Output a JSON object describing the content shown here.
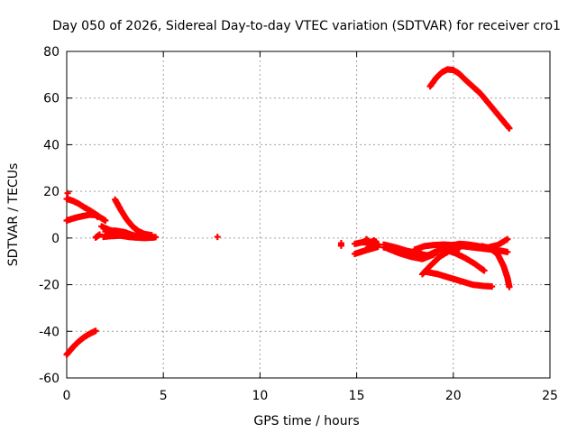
{
  "chart_data": {
    "type": "scatter",
    "title": "Day 050 of 2026, Sidereal Day-to-day VTEC variation (SDTVAR) for receiver cro1",
    "xlabel": "GPS time / hours",
    "ylabel": "SDTVAR / TECUs",
    "xlim": [
      0,
      25
    ],
    "ylim": [
      -60,
      80
    ],
    "xticks": [
      0,
      5,
      10,
      15,
      20,
      25
    ],
    "yticks": [
      -60,
      -40,
      -20,
      0,
      20,
      40,
      60,
      80
    ],
    "grid": true,
    "marker": "plus",
    "color": "#ff0000",
    "series": [
      {
        "name": "arc-1",
        "points": [
          [
            0.0,
            16.8
          ],
          [
            0.3,
            16.0
          ],
          [
            0.6,
            14.8
          ],
          [
            0.9,
            13.2
          ],
          [
            1.2,
            11.8
          ],
          [
            1.5,
            10.2
          ],
          [
            1.8,
            8.5
          ],
          [
            2.0,
            7.5
          ]
        ]
      },
      {
        "name": "arc-2",
        "points": [
          [
            0.0,
            7.5
          ],
          [
            0.3,
            8.3
          ],
          [
            0.6,
            9.0
          ],
          [
            0.9,
            9.5
          ],
          [
            1.2,
            10.0
          ],
          [
            1.5,
            9.8
          ],
          [
            1.6,
            9.0
          ]
        ]
      },
      {
        "name": "arc-3",
        "points": [
          [
            0.05,
            19.2
          ]
        ]
      },
      {
        "name": "arc-4",
        "points": [
          [
            0.0,
            -50.0
          ],
          [
            0.3,
            -47.0
          ],
          [
            0.6,
            -44.5
          ],
          [
            0.9,
            -42.5
          ],
          [
            1.2,
            -41.0
          ],
          [
            1.5,
            -39.8
          ]
        ]
      },
      {
        "name": "arc-5",
        "points": [
          [
            1.5,
            0.2
          ],
          [
            1.7,
            1.5
          ]
        ]
      },
      {
        "name": "arc-6",
        "points": [
          [
            1.8,
            5.0
          ],
          [
            2.2,
            3.5
          ],
          [
            2.6,
            2.5
          ],
          [
            3.0,
            1.8
          ],
          [
            3.4,
            1.2
          ],
          [
            3.8,
            0.8
          ],
          [
            4.2,
            0.5
          ],
          [
            4.6,
            0.4
          ]
        ]
      },
      {
        "name": "arc-7",
        "points": [
          [
            1.9,
            0.5
          ],
          [
            2.3,
            0.8
          ],
          [
            2.8,
            1.0
          ],
          [
            3.2,
            0.5
          ],
          [
            3.6,
            0.2
          ],
          [
            4.0,
            0.0
          ],
          [
            4.5,
            0.2
          ]
        ]
      },
      {
        "name": "arc-8",
        "points": [
          [
            2.5,
            16.5
          ],
          [
            2.8,
            12.0
          ],
          [
            3.1,
            8.0
          ],
          [
            3.4,
            5.0
          ],
          [
            3.7,
            3.0
          ],
          [
            4.0,
            1.8
          ],
          [
            4.4,
            1.2
          ]
        ]
      },
      {
        "name": "arc-9",
        "points": [
          [
            2.0,
            2.8
          ],
          [
            2.5,
            3.2
          ],
          [
            3.0,
            2.5
          ],
          [
            3.5,
            1.0
          ]
        ]
      },
      {
        "name": "arc-10",
        "points": [
          [
            7.8,
            0.5
          ]
        ]
      },
      {
        "name": "arc-11",
        "points": [
          [
            14.2,
            -2.2
          ],
          [
            14.2,
            -3.3
          ]
        ]
      },
      {
        "name": "arc-12",
        "points": [
          [
            14.9,
            -2.5
          ],
          [
            15.3,
            -1.8
          ],
          [
            15.7,
            -2.0
          ],
          [
            16.0,
            -2.5
          ]
        ]
      },
      {
        "name": "arc-13",
        "points": [
          [
            14.9,
            -6.8
          ],
          [
            15.2,
            -6.0
          ],
          [
            15.5,
            -5.2
          ],
          [
            15.8,
            -4.5
          ],
          [
            16.1,
            -3.8
          ]
        ]
      },
      {
        "name": "arc-14",
        "points": [
          [
            15.5,
            -0.5
          ],
          [
            15.7,
            -2.0
          ],
          [
            15.9,
            -1.0
          ],
          [
            16.1,
            -3.0
          ],
          [
            15.6,
            -4.0
          ],
          [
            16.0,
            -1.5
          ]
        ]
      },
      {
        "name": "arc-15",
        "points": [
          [
            16.4,
            -2.8
          ],
          [
            17.0,
            -4.0
          ],
          [
            17.6,
            -5.5
          ],
          [
            18.2,
            -6.5
          ],
          [
            18.6,
            -7.5
          ]
        ]
      },
      {
        "name": "arc-16",
        "points": [
          [
            16.4,
            -4.0
          ],
          [
            17.0,
            -5.0
          ],
          [
            17.6,
            -6.5
          ],
          [
            18.2,
            -7.0
          ],
          [
            18.8,
            -7.5
          ],
          [
            19.2,
            -6.0
          ]
        ]
      },
      {
        "name": "arc-17",
        "points": [
          [
            16.6,
            -4.5
          ],
          [
            17.2,
            -6.5
          ],
          [
            17.8,
            -8.0
          ],
          [
            18.4,
            -9.0
          ],
          [
            19.0,
            -7.0
          ]
        ]
      },
      {
        "name": "arc-18",
        "points": [
          [
            18.0,
            -5.0
          ],
          [
            18.5,
            -3.5
          ],
          [
            19.0,
            -3.0
          ],
          [
            19.5,
            -2.8
          ],
          [
            20.0,
            -3.0
          ],
          [
            20.5,
            -3.5
          ],
          [
            21.0,
            -4.0
          ],
          [
            21.5,
            -4.5
          ],
          [
            22.0,
            -5.0
          ],
          [
            22.5,
            -5.5
          ],
          [
            22.8,
            -6.0
          ]
        ]
      },
      {
        "name": "arc-19",
        "points": [
          [
            18.3,
            -8.5
          ],
          [
            18.8,
            -7.0
          ],
          [
            19.3,
            -5.0
          ],
          [
            19.8,
            -3.5
          ],
          [
            20.3,
            -2.5
          ],
          [
            20.8,
            -2.8
          ],
          [
            21.3,
            -3.5
          ],
          [
            21.8,
            -4.0
          ],
          [
            22.3,
            -3.0
          ],
          [
            22.8,
            -0.5
          ]
        ]
      },
      {
        "name": "arc-20",
        "points": [
          [
            18.4,
            -15.5
          ],
          [
            18.8,
            -12.0
          ],
          [
            19.3,
            -8.0
          ],
          [
            19.8,
            -5.5
          ],
          [
            20.3,
            -4.5
          ]
        ]
      },
      {
        "name": "arc-21",
        "points": [
          [
            18.6,
            -14.5
          ],
          [
            19.2,
            -15.5
          ],
          [
            19.8,
            -17.0
          ],
          [
            20.4,
            -18.5
          ],
          [
            21.0,
            -20.0
          ],
          [
            21.5,
            -20.5
          ],
          [
            22.0,
            -20.8
          ]
        ]
      },
      {
        "name": "arc-22",
        "points": [
          [
            19.6,
            -5.0
          ],
          [
            20.1,
            -6.5
          ],
          [
            20.6,
            -8.5
          ],
          [
            21.1,
            -11.0
          ],
          [
            21.6,
            -14.0
          ]
        ]
      },
      {
        "name": "arc-23",
        "points": [
          [
            21.5,
            -3.5
          ],
          [
            22.0,
            -5.0
          ],
          [
            22.3,
            -7.0
          ],
          [
            22.6,
            -12.0
          ],
          [
            22.8,
            -17.0
          ],
          [
            22.9,
            -21.0
          ]
        ]
      },
      {
        "name": "arc-24",
        "points": [
          [
            18.8,
            65.0
          ],
          [
            19.1,
            68.5
          ],
          [
            19.4,
            71.0
          ],
          [
            19.7,
            72.3
          ],
          [
            20.0,
            72.0
          ],
          [
            20.3,
            70.5
          ],
          [
            20.6,
            68.0
          ],
          [
            21.0,
            65.0
          ],
          [
            21.4,
            62.0
          ],
          [
            21.8,
            58.0
          ],
          [
            22.2,
            54.0
          ],
          [
            22.6,
            50.0
          ],
          [
            22.9,
            47.0
          ]
        ]
      }
    ]
  }
}
